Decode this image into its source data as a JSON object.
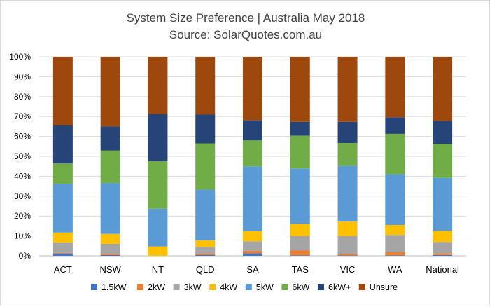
{
  "chart_data": {
    "type": "bar",
    "stacked": true,
    "title": "System Size Preference  | Australia May 2018",
    "subtitle": "Source: SolarQuotes.com.au",
    "xlabel": "",
    "ylabel": "",
    "ylim": [
      0,
      1
    ],
    "y_ticks": [
      "0%",
      "10%",
      "20%",
      "30%",
      "40%",
      "50%",
      "60%",
      "70%",
      "80%",
      "90%",
      "100%"
    ],
    "grid": true,
    "legend_position": "bottom",
    "categories": [
      "ACT",
      "NSW",
      "NT",
      "QLD",
      "SA",
      "TAS",
      "VIC",
      "WA",
      "National"
    ],
    "series": [
      {
        "name": "1.5kW",
        "color": "#4472c4",
        "values": [
          0.012,
          0.004,
          0.0,
          0.005,
          0.013,
          0.002,
          0.002,
          0.002,
          0.004
        ]
      },
      {
        "name": "2kW",
        "color": "#ed7d31",
        "values": [
          0.003,
          0.006,
          0.0,
          0.007,
          0.012,
          0.026,
          0.008,
          0.016,
          0.008
        ]
      },
      {
        "name": "3kW",
        "color": "#a5a5a5",
        "values": [
          0.052,
          0.05,
          0.0,
          0.033,
          0.048,
          0.072,
          0.09,
          0.087,
          0.058
        ]
      },
      {
        "name": "4kW",
        "color": "#ffc000",
        "values": [
          0.05,
          0.05,
          0.047,
          0.033,
          0.051,
          0.06,
          0.072,
          0.05,
          0.055
        ]
      },
      {
        "name": "5kW",
        "color": "#5b9bd5",
        "values": [
          0.245,
          0.256,
          0.19,
          0.255,
          0.326,
          0.279,
          0.28,
          0.255,
          0.267
        ]
      },
      {
        "name": "6kW",
        "color": "#70ad47",
        "values": [
          0.102,
          0.163,
          0.238,
          0.232,
          0.13,
          0.165,
          0.115,
          0.203,
          0.17
        ]
      },
      {
        "name": "6kW+",
        "color": "#264478",
        "values": [
          0.192,
          0.121,
          0.238,
          0.146,
          0.101,
          0.069,
          0.106,
          0.083,
          0.116
        ]
      },
      {
        "name": "Unsure",
        "color": "#9e480e",
        "values": [
          0.344,
          0.35,
          0.287,
          0.289,
          0.319,
          0.327,
          0.327,
          0.304,
          0.322
        ]
      }
    ]
  }
}
